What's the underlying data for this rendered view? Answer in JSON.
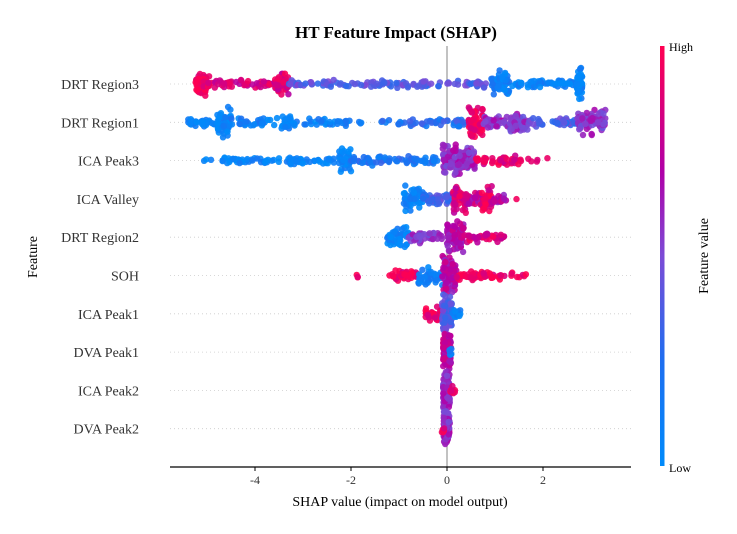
{
  "chart_data": {
    "type": "scatter",
    "subtype": "shap-beeswarm",
    "title": "HT Feature Impact (SHAP)",
    "xlabel": "SHAP value (impact on model output)",
    "ylabel": "Feature",
    "xlim": [
      -5.8,
      3.8
    ],
    "xticks": [
      -4,
      -2,
      0,
      2
    ],
    "xtick_labels": [
      "-4",
      "-2",
      "0",
      "2"
    ],
    "grid": false,
    "colorbar": {
      "title": "Feature value",
      "high_label": "High",
      "low_label": "Low",
      "high_color": "#ff0051",
      "mid_color": "#a000b0",
      "low_color": "#008bfb"
    },
    "features": [
      {
        "name": "DRT Region3",
        "clusters": [
          {
            "range": [
              -5.25,
              -4.95
            ],
            "n": 60,
            "spread": 1.0,
            "value": 0.95
          },
          {
            "range": [
              -5.0,
              -3.4
            ],
            "n": 60,
            "spread": 0.2,
            "value": 0.85
          },
          {
            "range": [
              -3.6,
              -3.3
            ],
            "n": 40,
            "spread": 0.8,
            "value": 0.85
          },
          {
            "range": [
              -3.3,
              0.9
            ],
            "n": 110,
            "spread": 0.2,
            "value": 0.4
          },
          {
            "range": [
              0.9,
              1.2
            ],
            "n": 35,
            "spread": 0.8,
            "value": 0.15
          },
          {
            "range": [
              1.05,
              1.3
            ],
            "n": 30,
            "spread": 1.1,
            "value": 0.1
          },
          {
            "range": [
              1.3,
              2.7
            ],
            "n": 60,
            "spread": 0.2,
            "value": 0.08
          },
          {
            "range": [
              2.7,
              2.82
            ],
            "n": 50,
            "spread": 1.4,
            "value": 0.05
          }
        ]
      },
      {
        "name": "DRT Region1",
        "clusters": [
          {
            "range": [
              -5.4,
              -4.8
            ],
            "n": 30,
            "spread": 0.25,
            "value": 0.05
          },
          {
            "range": [
              -4.8,
              -4.5
            ],
            "n": 60,
            "spread": 1.2,
            "value": 0.05
          },
          {
            "range": [
              -4.5,
              -2.0
            ],
            "n": 70,
            "spread": 0.25,
            "value": 0.1
          },
          {
            "range": [
              -3.45,
              -3.25
            ],
            "n": 20,
            "spread": 0.6,
            "value": 0.1
          },
          {
            "range": [
              -1.9,
              -0.8
            ],
            "n": 12,
            "spread": 0.1,
            "value": 0.2
          },
          {
            "range": [
              -0.8,
              0.4
            ],
            "n": 40,
            "spread": 0.25,
            "value": 0.25
          },
          {
            "range": [
              0.45,
              0.75
            ],
            "n": 60,
            "spread": 1.4,
            "value": 0.95
          },
          {
            "range": [
              0.75,
              1.3
            ],
            "n": 40,
            "spread": 0.4,
            "value": 0.6
          },
          {
            "range": [
              1.3,
              1.7
            ],
            "n": 45,
            "spread": 0.8,
            "value": 0.55
          },
          {
            "range": [
              1.7,
              2.0
            ],
            "n": 15,
            "spread": 0.3,
            "value": 0.4
          },
          {
            "range": [
              2.2,
              2.7
            ],
            "n": 25,
            "spread": 0.25,
            "value": 0.35
          },
          {
            "range": [
              2.7,
              3.3
            ],
            "n": 70,
            "spread": 1.0,
            "value": 0.55
          }
        ]
      },
      {
        "name": "ICA Peak3",
        "clusters": [
          {
            "range": [
              -5.1,
              -4.9
            ],
            "n": 3,
            "spread": 0.05,
            "value": 0.02
          },
          {
            "range": [
              -4.7,
              -2.3
            ],
            "n": 80,
            "spread": 0.2,
            "value": 0.05
          },
          {
            "range": [
              -2.25,
              -2.0
            ],
            "n": 40,
            "spread": 1.0,
            "value": 0.05
          },
          {
            "range": [
              -2.0,
              -0.2
            ],
            "n": 70,
            "spread": 0.3,
            "value": 0.2
          },
          {
            "range": [
              -0.1,
              0.6
            ],
            "n": 150,
            "spread": 1.2,
            "value": 0.6
          },
          {
            "range": [
              0.6,
              1.6
            ],
            "n": 50,
            "spread": 0.3,
            "value": 0.9
          },
          {
            "range": [
              1.6,
              2.1
            ],
            "n": 5,
            "spread": 0.1,
            "value": 0.95
          }
        ]
      },
      {
        "name": "ICA Valley",
        "clusters": [
          {
            "range": [
              -0.9,
              -0.5
            ],
            "n": 45,
            "spread": 1.0,
            "value": 0.05
          },
          {
            "range": [
              -0.5,
              0.1
            ],
            "n": 50,
            "spread": 0.4,
            "value": 0.35
          },
          {
            "range": [
              0.1,
              0.4
            ],
            "n": 50,
            "spread": 1.1,
            "value": 0.85
          },
          {
            "range": [
              0.4,
              0.7
            ],
            "n": 30,
            "spread": 0.4,
            "value": 0.75
          },
          {
            "range": [
              0.7,
              0.95
            ],
            "n": 35,
            "spread": 1.0,
            "value": 0.9
          },
          {
            "range": [
              0.95,
              1.25
            ],
            "n": 15,
            "spread": 0.2,
            "value": 0.7
          },
          {
            "range": [
              1.4,
              1.5
            ],
            "n": 1,
            "spread": 0.0,
            "value": 0.95
          }
        ]
      },
      {
        "name": "DRT Region2",
        "clusters": [
          {
            "range": [
              -1.25,
              -0.8
            ],
            "n": 50,
            "spread": 0.8,
            "value": 0.05
          },
          {
            "range": [
              -0.8,
              -0.1
            ],
            "n": 50,
            "spread": 0.35,
            "value": 0.55
          },
          {
            "range": [
              0.0,
              0.35
            ],
            "n": 100,
            "spread": 1.3,
            "value": 0.7
          },
          {
            "range": [
              0.35,
              1.2
            ],
            "n": 45,
            "spread": 0.3,
            "value": 0.85
          }
        ]
      },
      {
        "name": "SOH",
        "clusters": [
          {
            "range": [
              -2.0,
              -1.8
            ],
            "n": 3,
            "spread": 0.05,
            "value": 0.95
          },
          {
            "range": [
              -1.2,
              -0.6
            ],
            "n": 50,
            "spread": 0.3,
            "value": 0.95
          },
          {
            "range": [
              -0.6,
              -0.1
            ],
            "n": 40,
            "spread": 0.7,
            "value": 0.1
          },
          {
            "range": [
              -0.1,
              0.2
            ],
            "n": 80,
            "spread": 1.5,
            "value": 0.7
          },
          {
            "range": [
              0.2,
              1.2
            ],
            "n": 50,
            "spread": 0.3,
            "value": 0.95
          },
          {
            "range": [
              1.3,
              1.65
            ],
            "n": 8,
            "spread": 0.1,
            "value": 0.95
          }
        ]
      },
      {
        "name": "ICA Peak1",
        "clusters": [
          {
            "range": [
              -0.45,
              -0.1
            ],
            "n": 40,
            "spread": 0.5,
            "value": 0.95
          },
          {
            "range": [
              -0.1,
              0.1
            ],
            "n": 90,
            "spread": 1.5,
            "value": 0.4
          },
          {
            "range": [
              0.1,
              0.3
            ],
            "n": 12,
            "spread": 0.3,
            "value": 0.05
          }
        ]
      },
      {
        "name": "DVA Peak1",
        "clusters": [
          {
            "range": [
              -0.08,
              0.08
            ],
            "n": 120,
            "spread": 1.6,
            "value": 0.75
          },
          {
            "range": [
              0.05,
              0.12
            ],
            "n": 6,
            "spread": 0.3,
            "value": 0.1
          }
        ]
      },
      {
        "name": "ICA Peak2",
        "clusters": [
          {
            "range": [
              -0.08,
              0.06
            ],
            "n": 120,
            "spread": 1.6,
            "value": 0.6
          },
          {
            "range": [
              0.05,
              0.2
            ],
            "n": 12,
            "spread": 0.3,
            "value": 0.95
          }
        ]
      },
      {
        "name": "DVA Peak2",
        "clusters": [
          {
            "range": [
              -0.07,
              0.06
            ],
            "n": 120,
            "spread": 1.5,
            "value": 0.6
          },
          {
            "range": [
              -0.12,
              -0.05
            ],
            "n": 5,
            "spread": 0.3,
            "value": 0.95
          }
        ]
      }
    ]
  }
}
